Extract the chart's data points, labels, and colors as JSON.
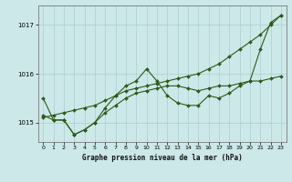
{
  "xlabel": "Graphe pression niveau de la mer (hPa)",
  "bg_color": "#cce8e8",
  "line_color": "#2d5a1b",
  "grid_color": "#aacfcf",
  "ylim": [
    1014.6,
    1017.4
  ],
  "xlim": [
    -0.5,
    23.5
  ],
  "yticks": [
    1015,
    1016,
    1017
  ],
  "xticks": [
    0,
    1,
    2,
    3,
    4,
    5,
    6,
    7,
    8,
    9,
    10,
    11,
    12,
    13,
    14,
    15,
    16,
    17,
    18,
    19,
    20,
    21,
    22,
    23
  ],
  "series": [
    [
      1015.5,
      1015.05,
      1015.05,
      1014.75,
      1014.85,
      1015.0,
      1015.3,
      1015.55,
      1015.75,
      1015.85,
      1016.1,
      1015.85,
      1015.55,
      1015.4,
      1015.35,
      1015.35,
      1015.55,
      1015.5,
      1015.6,
      1015.75,
      1015.85,
      1016.5,
      1017.05,
      1017.2
    ],
    [
      1015.15,
      1015.05,
      1015.05,
      1014.75,
      1014.85,
      1015.0,
      1015.2,
      1015.35,
      1015.5,
      1015.6,
      1015.65,
      1015.7,
      1015.75,
      1015.75,
      1015.7,
      1015.65,
      1015.7,
      1015.75,
      1015.75,
      1015.8,
      1015.85,
      1015.85,
      1015.9,
      1015.95
    ],
    [
      1015.1,
      1015.15,
      1015.2,
      1015.25,
      1015.3,
      1015.35,
      1015.45,
      1015.55,
      1015.65,
      1015.7,
      1015.75,
      1015.8,
      1015.85,
      1015.9,
      1015.95,
      1016.0,
      1016.1,
      1016.2,
      1016.35,
      1016.5,
      1016.65,
      1016.8,
      1017.0,
      1017.2
    ]
  ]
}
